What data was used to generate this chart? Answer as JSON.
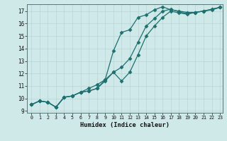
{
  "xlabel": "Humidex (Indice chaleur)",
  "bg_color": "#cfe8e8",
  "line_color": "#1e7070",
  "xlim": [
    -0.5,
    23.3
  ],
  "ylim": [
    8.85,
    17.55
  ],
  "xticks": [
    0,
    1,
    2,
    3,
    4,
    5,
    6,
    7,
    8,
    9,
    10,
    11,
    12,
    13,
    14,
    15,
    16,
    17,
    18,
    19,
    20,
    21,
    22,
    23
  ],
  "yticks": [
    9,
    10,
    11,
    12,
    13,
    14,
    15,
    16,
    17
  ],
  "line1_x": [
    0,
    1,
    2,
    3,
    4,
    5,
    6,
    7,
    8,
    9,
    10,
    11,
    12,
    13,
    14,
    15,
    16,
    17,
    18,
    19,
    20,
    21,
    22,
    23
  ],
  "line1_y": [
    9.5,
    9.8,
    9.7,
    9.3,
    10.1,
    10.2,
    10.5,
    10.8,
    11.1,
    11.5,
    13.8,
    15.3,
    15.5,
    16.5,
    16.7,
    17.1,
    17.35,
    17.1,
    17.0,
    16.9,
    16.9,
    17.0,
    17.1,
    17.3
  ],
  "line2_x": [
    0,
    1,
    2,
    3,
    4,
    5,
    6,
    7,
    8,
    9,
    10,
    11,
    12,
    13,
    14,
    15,
    16,
    17,
    18,
    19,
    20,
    21,
    22,
    23
  ],
  "line2_y": [
    9.5,
    9.8,
    9.7,
    9.3,
    10.1,
    10.2,
    10.5,
    10.6,
    10.8,
    11.4,
    12.1,
    12.5,
    13.2,
    14.5,
    15.8,
    16.4,
    17.0,
    17.15,
    16.95,
    16.8,
    16.9,
    17.0,
    17.15,
    17.3
  ],
  "line3_x": [
    0,
    1,
    2,
    3,
    4,
    5,
    6,
    7,
    8,
    9,
    10,
    11,
    12,
    13,
    14,
    15,
    16,
    17,
    18,
    19,
    20,
    21,
    22,
    23
  ],
  "line3_y": [
    9.5,
    9.8,
    9.7,
    9.3,
    10.1,
    10.2,
    10.5,
    10.6,
    10.8,
    11.5,
    12.1,
    11.4,
    12.1,
    13.5,
    15.0,
    15.8,
    16.5,
    17.0,
    16.85,
    16.75,
    16.9,
    17.0,
    17.15,
    17.3
  ]
}
